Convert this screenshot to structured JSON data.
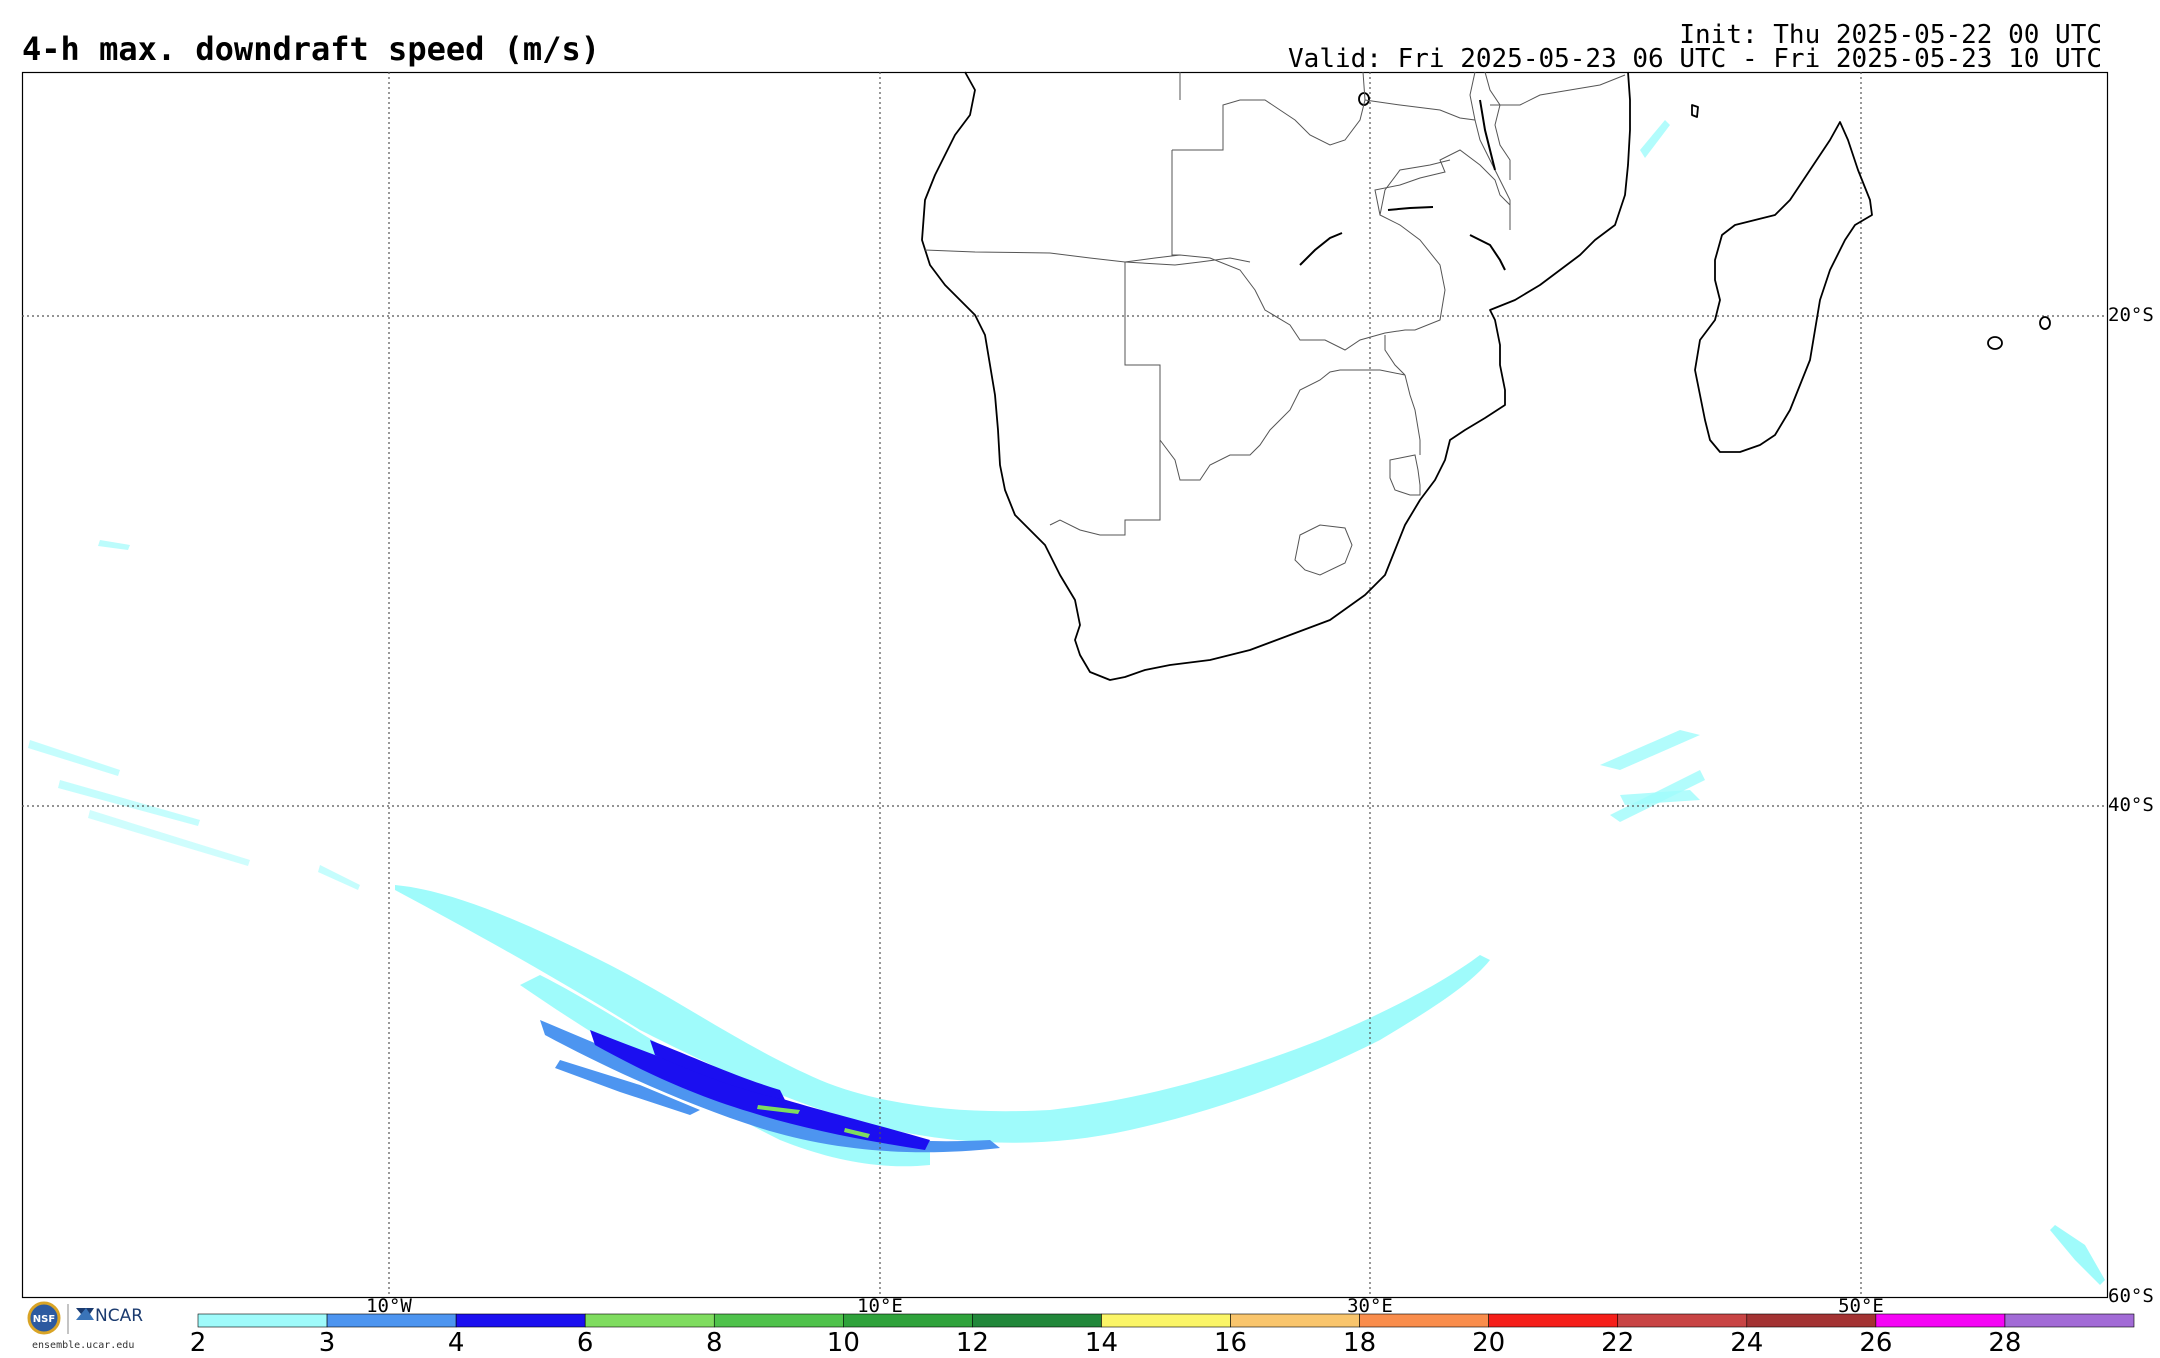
{
  "header": {
    "title": "4-h max. downdraft speed (m/s)",
    "init": "Init: Thu 2025-05-22 00 UTC",
    "valid": "Valid: Fri 2025-05-23 06 UTC - Fri 2025-05-23 10 UTC"
  },
  "map": {
    "lat_labels": [
      "20°S",
      "40°S",
      "60°S"
    ],
    "lon_labels": [
      "10°W",
      "10°E",
      "30°E",
      "50°E"
    ]
  },
  "colorbar": {
    "ticks": [
      "2",
      "3",
      "4",
      "6",
      "8",
      "10",
      "12",
      "14",
      "16",
      "18",
      "20",
      "22",
      "24",
      "26",
      "28"
    ],
    "colors": [
      "#9ffbfb",
      "#4d95f0",
      "#1b0ff0",
      "#7fdc5f",
      "#4fc24b",
      "#2fa23b",
      "#21873a",
      "#fbf567",
      "#f9c56c",
      "#f98d4c",
      "#f51e19",
      "#c84444",
      "#a33232",
      "#f505f5",
      "#a26bd6"
    ]
  },
  "footer": {
    "website": "ensemble.ucar.edu",
    "logo_nsf": "NSF",
    "logo_ncar": "NCAR"
  }
}
